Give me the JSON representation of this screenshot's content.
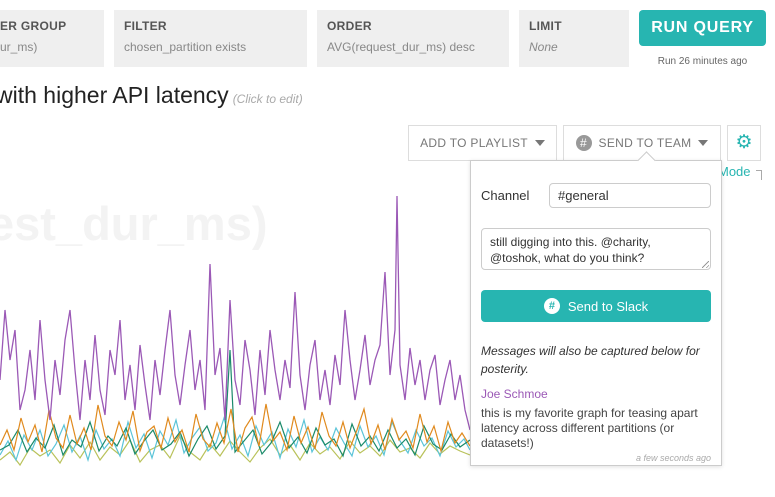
{
  "query": {
    "group": {
      "label": "ER GROUP",
      "value": "ur_ms)"
    },
    "filter": {
      "label": "FILTER",
      "value": "chosen_partition exists"
    },
    "order": {
      "label": "ORDER",
      "value": "AVG(request_dur_ms) desc"
    },
    "limit": {
      "label": "LIMIT",
      "value": "None"
    },
    "run_label": "RUN QUERY",
    "run_time": "Run 26 minutes ago"
  },
  "page": {
    "title": "with higher API latency",
    "title_hint": "(Click to edit)",
    "chart_heading": "est_dur_ms)"
  },
  "toolbar": {
    "playlist_label": "ADD TO PLAYLIST",
    "send_team_label": "SEND TO TEAM",
    "mode_label": "Mode",
    "icons": {
      "send_team": "slack-icon",
      "settings": "gear-icon"
    }
  },
  "slack_panel": {
    "channel_label": "Channel",
    "channel_value": "#general",
    "message_value": "still digging into this. @charity, @toshok, what do you think?",
    "send_label": "Send to Slack",
    "note": "Messages will also be captured below for posterity.",
    "comment_author": "Joe Schmoe",
    "comment_text": "this is my favorite graph for teasing apart latency across different partitions (or datasets!)",
    "comment_time": "a few seconds ago"
  },
  "colors": {
    "accent": "#27b5b1",
    "purple": "#9b59b6",
    "orange": "#e08a1e",
    "green": "#1a8a6a",
    "teal": "#5bc4d8",
    "olive": "#b9c25a"
  }
}
